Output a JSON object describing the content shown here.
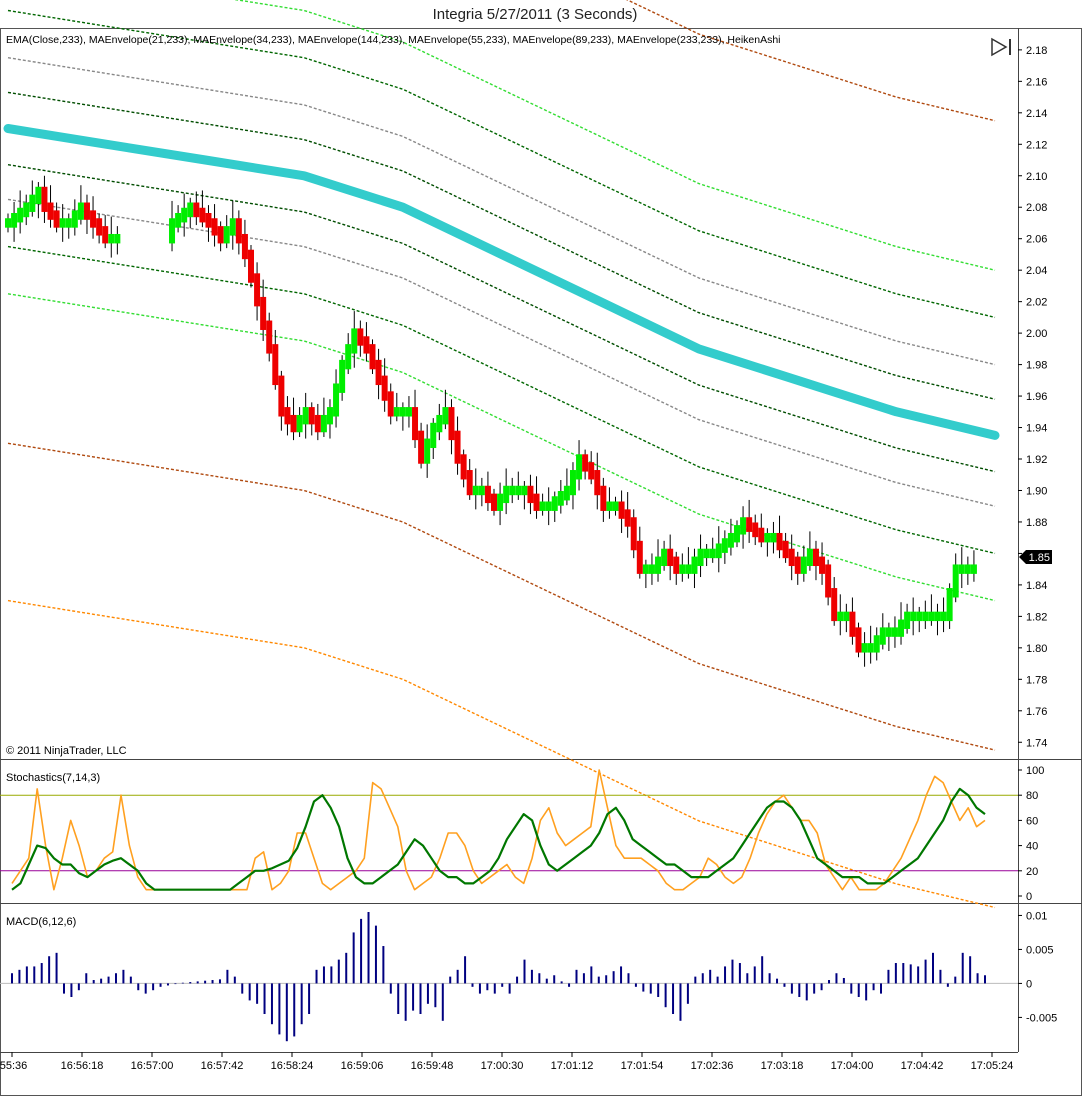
{
  "title": "Integria  5/27/2011 (3 Seconds)",
  "copyright": "© 2011 NinjaTrader, LLC",
  "play_icon": "skip-forward-icon",
  "price_panel": {
    "indicators_label": "EMA(Close,233), MAEnvelope(21,233), MAEnvelope(34,233), MAEnvelope(144,233), MAEnvelope(55,233), MAEnvelope(89,233), MAEnvelope(233,233), HeikenAshi",
    "y_ticks": [
      "2.18",
      "2.16",
      "2.14",
      "2.12",
      "2.10",
      "2.08",
      "2.06",
      "2.04",
      "2.02",
      "2.00",
      "1.98",
      "1.96",
      "1.94",
      "1.92",
      "1.90",
      "1.88",
      "1.86",
      "1.84",
      "1.82",
      "1.80",
      "1.78",
      "1.76",
      "1.74"
    ],
    "current_price": "1.85"
  },
  "stoch_panel": {
    "label": "Stochastics(7,14,3)",
    "y_ticks": [
      "100",
      "80",
      "60",
      "40",
      "20",
      "0"
    ]
  },
  "macd_panel": {
    "label": "MACD(6,12,6)",
    "y_ticks": [
      "0.01",
      "0.005",
      "0",
      "-0.005"
    ]
  },
  "x_ticks": [
    ":55:36",
    "16:56:18",
    "16:57:00",
    "16:57:42",
    "16:58:24",
    "16:59:06",
    "16:59:48",
    "17:00:30",
    "17:01:12",
    "17:01:54",
    "17:02:36",
    "17:03:18",
    "17:04:00",
    "17:04:42",
    "17:05:24"
  ],
  "colors": {
    "up": "#00ee00",
    "down": "#ee0000",
    "ema": "#33cccc",
    "stoch_k": "#ffa020",
    "stoch_d": "#007700",
    "macd": "#000080",
    "stoch_80": "#99aa00",
    "stoch_20": "#990099"
  },
  "chart_data": [
    {
      "type": "candlestick",
      "name": "HeikenAshi",
      "ylim": [
        1.73,
        2.185
      ],
      "x_ticks": [
        "16:56:18",
        "16:57:00",
        "16:57:42",
        "16:58:24",
        "16:59:06",
        "16:59:48",
        "17:00:30",
        "17:01:12",
        "17:01:54",
        "17:02:36",
        "17:03:18",
        "17:04:00",
        "17:04:42",
        "17:05:24"
      ],
      "close_anchors": [
        [
          0,
          2.07
        ],
        [
          3,
          2.08
        ],
        [
          5,
          2.09
        ],
        [
          6,
          2.08
        ],
        [
          8,
          2.07
        ],
        [
          10,
          2.07
        ],
        [
          12,
          2.08
        ],
        [
          14,
          2.07
        ],
        [
          16,
          2.06
        ],
        [
          18,
          2.06
        ],
        [
          27,
          2.07
        ],
        [
          30,
          2.08
        ],
        [
          33,
          2.07
        ],
        [
          35,
          2.06
        ],
        [
          37,
          2.07
        ],
        [
          39,
          2.05
        ],
        [
          41,
          2.02
        ],
        [
          43,
          1.99
        ],
        [
          45,
          1.95
        ],
        [
          47,
          1.94
        ],
        [
          49,
          1.95
        ],
        [
          51,
          1.94
        ],
        [
          53,
          1.95
        ],
        [
          55,
          1.98
        ],
        [
          57,
          2.0
        ],
        [
          59,
          1.99
        ],
        [
          61,
          1.97
        ],
        [
          63,
          1.95
        ],
        [
          66,
          1.95
        ],
        [
          68,
          1.92
        ],
        [
          70,
          1.94
        ],
        [
          72,
          1.95
        ],
        [
          74,
          1.92
        ],
        [
          76,
          1.9
        ],
        [
          78,
          1.9
        ],
        [
          80,
          1.89
        ],
        [
          82,
          1.9
        ],
        [
          85,
          1.9
        ],
        [
          87,
          1.89
        ],
        [
          89,
          1.89
        ],
        [
          92,
          1.9
        ],
        [
          94,
          1.92
        ],
        [
          96,
          1.91
        ],
        [
          98,
          1.89
        ],
        [
          100,
          1.89
        ],
        [
          102,
          1.88
        ],
        [
          104,
          1.85
        ],
        [
          106,
          1.85
        ],
        [
          108,
          1.86
        ],
        [
          110,
          1.85
        ],
        [
          112,
          1.85
        ],
        [
          114,
          1.86
        ],
        [
          116,
          1.86
        ],
        [
          119,
          1.87
        ],
        [
          121,
          1.88
        ],
        [
          124,
          1.87
        ],
        [
          126,
          1.87
        ],
        [
          128,
          1.86
        ],
        [
          130,
          1.85
        ],
        [
          132,
          1.86
        ],
        [
          134,
          1.85
        ],
        [
          136,
          1.82
        ],
        [
          138,
          1.82
        ],
        [
          140,
          1.8
        ],
        [
          142,
          1.8
        ],
        [
          144,
          1.81
        ],
        [
          146,
          1.81
        ],
        [
          148,
          1.82
        ],
        [
          150,
          1.82
        ],
        [
          152,
          1.82
        ],
        [
          154,
          1.82
        ],
        [
          156,
          1.85
        ],
        [
          158,
          1.85
        ],
        [
          159,
          1.85
        ]
      ],
      "gaps": [
        [
          19,
          26
        ]
      ]
    },
    {
      "type": "line",
      "name": "EMA(Close,233)",
      "series_x_minutes": [
        0,
        1,
        2,
        3,
        4,
        5,
        6,
        7,
        8,
        9,
        10
      ],
      "values": [
        2.13,
        2.12,
        2.11,
        2.1,
        2.08,
        2.05,
        2.02,
        1.99,
        1.97,
        1.95,
        1.935
      ]
    },
    {
      "type": "line",
      "name": "MAEnvelope bands",
      "series": [
        {
          "name": "MAEnvelope(21,233)",
          "offset": 0.105
        },
        {
          "name": "MAEnvelope(34,233)",
          "offset": 0.075
        },
        {
          "name": "MAEnvelope(55,233)",
          "offset": 0.045
        },
        {
          "name": "MAEnvelope(89,233)",
          "offset": 0.023
        },
        {
          "name": "MAEnvelope(144,233)",
          "offset": 0.2
        },
        {
          "name": "MAEnvelope(233,233)",
          "offset": 0.3
        }
      ]
    },
    {
      "type": "line",
      "name": "Stochastics(7,14,3)",
      "ylim": [
        0,
        100
      ],
      "k_values": [
        10,
        20,
        30,
        85,
        40,
        5,
        30,
        60,
        40,
        15,
        20,
        30,
        35,
        80,
        40,
        15,
        5,
        5,
        5,
        5,
        5,
        5,
        5,
        5,
        5,
        5,
        5,
        5,
        5,
        30,
        35,
        5,
        10,
        20,
        50,
        50,
        30,
        10,
        5,
        10,
        15,
        20,
        30,
        90,
        85,
        70,
        55,
        20,
        5,
        10,
        15,
        30,
        50,
        50,
        40,
        20,
        10,
        15,
        20,
        25,
        15,
        10,
        30,
        60,
        70,
        50,
        40,
        45,
        50,
        55,
        100,
        70,
        40,
        30,
        30,
        30,
        25,
        20,
        10,
        5,
        5,
        10,
        15,
        30,
        25,
        15,
        10,
        15,
        30,
        50,
        65,
        75,
        80,
        70,
        60,
        60,
        50,
        25,
        15,
        5,
        15,
        5,
        5,
        5,
        10,
        20,
        30,
        45,
        60,
        80,
        95,
        90,
        75,
        60,
        70,
        55,
        60
      ],
      "d_values": [
        5,
        10,
        25,
        40,
        38,
        30,
        25,
        25,
        18,
        15,
        20,
        25,
        28,
        30,
        25,
        20,
        10,
        5,
        5,
        5,
        5,
        5,
        5,
        5,
        5,
        5,
        5,
        10,
        15,
        20,
        20,
        22,
        25,
        28,
        38,
        55,
        75,
        80,
        70,
        55,
        30,
        15,
        10,
        10,
        15,
        20,
        25,
        35,
        45,
        40,
        30,
        20,
        15,
        15,
        10,
        10,
        15,
        20,
        30,
        45,
        55,
        65,
        60,
        40,
        25,
        20,
        25,
        30,
        35,
        40,
        50,
        65,
        70,
        60,
        45,
        40,
        35,
        30,
        25,
        25,
        20,
        15,
        15,
        15,
        20,
        25,
        30,
        40,
        50,
        60,
        70,
        75,
        75,
        70,
        60,
        45,
        30,
        25,
        20,
        15,
        15,
        15,
        10,
        10,
        10,
        15,
        20,
        25,
        30,
        40,
        50,
        60,
        75,
        85,
        80,
        70,
        65
      ],
      "reference_lines": [
        80,
        20
      ]
    },
    {
      "type": "bar",
      "name": "MACD(6,12,6)",
      "ylim": [
        -0.0095,
        0.0108
      ],
      "values": [
        0.0015,
        0.002,
        0.0025,
        0.0025,
        0.003,
        0.004,
        0.0045,
        -0.0015,
        -0.002,
        -0.001,
        0.0015,
        0.0005,
        0.0007,
        0.001,
        0.0015,
        0.002,
        0.001,
        -0.001,
        -0.0015,
        -0.001,
        -0.0005,
        -0.0003,
        -0.0001,
        0.0001,
        0.0002,
        0.0003,
        0.0004,
        0.0005,
        0.0006,
        0.002,
        0.001,
        -0.0015,
        -0.0025,
        -0.003,
        -0.0045,
        -0.006,
        -0.0075,
        -0.0085,
        -0.0078,
        -0.006,
        -0.0045,
        0.002,
        0.0025,
        0.0025,
        0.0035,
        0.0045,
        0.0075,
        0.0095,
        0.0105,
        0.0085,
        0.0055,
        -0.0015,
        -0.0045,
        -0.0055,
        -0.004,
        -0.0045,
        -0.003,
        -0.0035,
        -0.0055,
        0.001,
        0.002,
        0.004,
        -0.0005,
        -0.0015,
        -0.001,
        -0.0015,
        -0.0005,
        -0.0015,
        0.001,
        0.0035,
        0.002,
        0.0015,
        0.0007,
        0.0012,
        0.0003,
        -0.0005,
        0.002,
        0.0015,
        0.0025,
        0.001,
        0.0012,
        0.0018,
        0.0025,
        0.0015,
        -0.0005,
        -0.0012,
        -0.0015,
        -0.002,
        -0.0035,
        -0.0045,
        -0.0055,
        -0.003,
        0.001,
        0.0015,
        0.002,
        0.001,
        0.0025,
        0.0035,
        0.003,
        0.0015,
        0.0025,
        0.004,
        0.0015,
        0.0007,
        -0.0005,
        -0.0015,
        -0.002,
        -0.0025,
        -0.0015,
        -0.001,
        0.0005,
        0.0015,
        0.0008,
        -0.0015,
        -0.002,
        -0.0025,
        -0.001,
        -0.0015,
        0.002,
        0.003,
        0.003,
        0.0028,
        0.0025,
        0.0035,
        0.0045,
        0.002,
        -0.0005,
        0.001,
        0.0045,
        0.004,
        0.0015,
        0.0012
      ]
    }
  ]
}
